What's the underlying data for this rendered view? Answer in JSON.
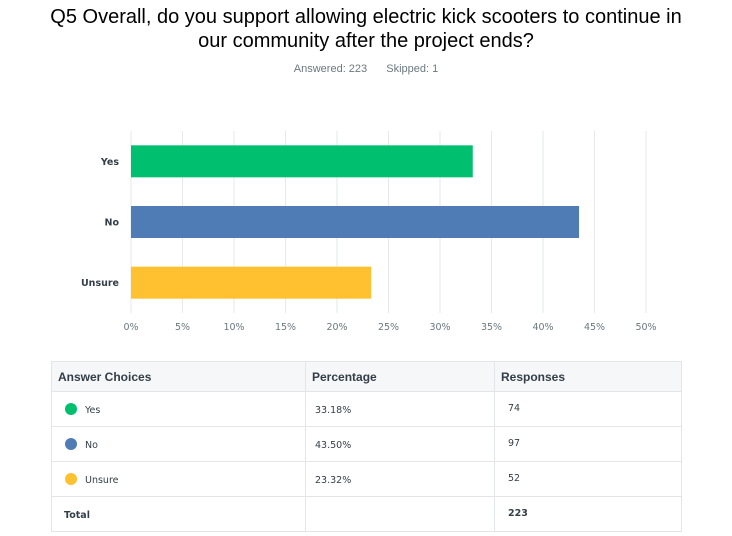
{
  "question": {
    "title_line1": "Q5 Overall, do you support allowing electric kick scooters to continue in",
    "title_line2": "our community after the project ends?",
    "answered": "Answered: 223",
    "skipped": "Skipped: 1"
  },
  "chart_data": {
    "type": "bar",
    "orientation": "horizontal",
    "categories": [
      "Yes",
      "No",
      "Unsure"
    ],
    "values": [
      33.18,
      43.5,
      23.32
    ],
    "colors": [
      "#00bf6f",
      "#507cb6",
      "#ffc12f"
    ],
    "xlim": [
      0,
      50
    ],
    "ticks": [
      "0%",
      "5%",
      "10%",
      "15%",
      "20%",
      "25%",
      "30%",
      "35%",
      "40%",
      "45%",
      "50%"
    ],
    "grid": true
  },
  "table": {
    "headers": [
      "Answer Choices",
      "Percentage",
      "Responses"
    ],
    "rows": [
      {
        "choice": "Yes",
        "percent": "33.18%",
        "responses": "74",
        "color": "#00bf6f"
      },
      {
        "choice": "No",
        "percent": "43.50%",
        "responses": "97",
        "color": "#507cb6"
      },
      {
        "choice": "Unsure",
        "percent": "23.32%",
        "responses": "52",
        "color": "#ffc12f"
      }
    ],
    "total_label": "Total",
    "total_value": "223"
  }
}
